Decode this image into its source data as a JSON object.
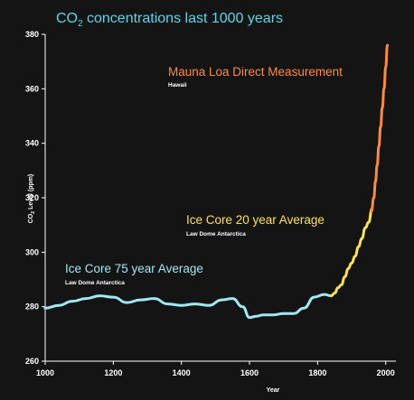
{
  "colors": {
    "background": "#141414",
    "axis": "#ffffff",
    "title": "#56d8ec",
    "ice_core_75": "#9fe9f5",
    "ice_core_20": "#ffe24d",
    "mauna_loa": "#ff8a3c"
  },
  "chart_data": {
    "type": "line",
    "title_main": "CO",
    "title_sub": "2",
    "title_rest": " concentrations last 1000 years",
    "xlabel": "Year",
    "ylabel_main": "CO",
    "ylabel_sub": "2",
    "ylabel_rest": " Level (ppm)",
    "xlim": [
      1000,
      2030
    ],
    "ylim": [
      260,
      380
    ],
    "xticks": [
      1000,
      1200,
      1400,
      1600,
      1800,
      2000
    ],
    "yticks": [
      260,
      280,
      300,
      320,
      340,
      360,
      380
    ],
    "grid": false,
    "legend": "none",
    "series": [
      {
        "key": "ice_core_75",
        "x": [
          1000,
          1040,
          1080,
          1120,
          1160,
          1200,
          1240,
          1280,
          1320,
          1360,
          1400,
          1440,
          1480,
          1520,
          1550,
          1580,
          1600,
          1620,
          1640,
          1670,
          1700,
          1730,
          1760,
          1790,
          1820,
          1840
        ],
        "y": [
          279.5,
          280.5,
          282,
          283,
          284,
          283.5,
          281.5,
          282.5,
          283,
          281,
          280.5,
          281,
          280.5,
          282.5,
          283,
          280,
          276,
          276.5,
          277,
          277,
          277.5,
          277.5,
          279.5,
          283.5,
          284.5,
          284
        ]
      },
      {
        "key": "ice_core_20",
        "x": [
          1840,
          1850,
          1860,
          1870,
          1880,
          1890,
          1900,
          1910,
          1920,
          1930,
          1940,
          1950,
          1960
        ],
        "y": [
          284,
          285,
          287,
          288,
          291,
          294,
          296,
          298.5,
          302,
          305,
          309,
          311,
          316
        ]
      },
      {
        "key": "mauna_loa",
        "x": [
          1958,
          1965,
          1970,
          1975,
          1980,
          1985,
          1990,
          1995,
          2000,
          2005
        ],
        "y": [
          315,
          320,
          326,
          332,
          339,
          346,
          353,
          360,
          368,
          376
        ]
      }
    ],
    "annotations": [
      {
        "key": "mauna_loa",
        "text": "Mauna Loa Direct Measurement",
        "subtext": "Hawaii"
      },
      {
        "key": "ice_core_20",
        "text": "Ice Core 20 year Average",
        "subtext": "Law Dome Antarctica"
      },
      {
        "key": "ice_core_75",
        "text": "Ice Core 75 year Average",
        "subtext": "Law Dome Antarctica"
      }
    ]
  }
}
